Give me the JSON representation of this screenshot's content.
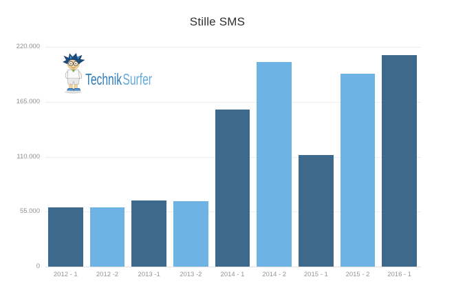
{
  "page": {
    "background": "#ffffff"
  },
  "chart_data": {
    "type": "bar",
    "title": "Stille SMS",
    "categories": [
      "2012 - 1",
      "2012 -2",
      "2013 -1",
      "2013 -2",
      "2014 - 1",
      "2014 - 2",
      "2015 - 1",
      "2015 - 2",
      "2016 - 1"
    ],
    "values": [
      59500,
      59000,
      66000,
      65500,
      157500,
      204500,
      111500,
      193000,
      211500
    ],
    "xlabel": "",
    "ylabel": "",
    "ylim": [
      0,
      220000
    ],
    "y_ticks": [
      220000,
      165000,
      110000,
      55000,
      0
    ],
    "y_tick_labels": [
      "220.000",
      "165.000",
      "110.000",
      "55.000",
      "0"
    ],
    "grid": true,
    "legend": false,
    "bar_colors": [
      "#3d6a8c",
      "#6db3e3",
      "#3d6a8c",
      "#6db3e3",
      "#3d6a8c",
      "#6db3e3",
      "#3d6a8c",
      "#6db3e3",
      "#3d6a8c"
    ]
  },
  "colors": {
    "bar_dark": "#3d6a8c",
    "bar_light": "#6db3e3",
    "gridline": "#ececec",
    "axis_text": "#8f8f8f",
    "title_text": "#2f2f2f",
    "brand_dark_blue": "#2e7cb8",
    "brand_light_blue": "#64a9d9"
  },
  "logo": {
    "brand_part1": "Technik",
    "brand_part2": "Surfer"
  }
}
